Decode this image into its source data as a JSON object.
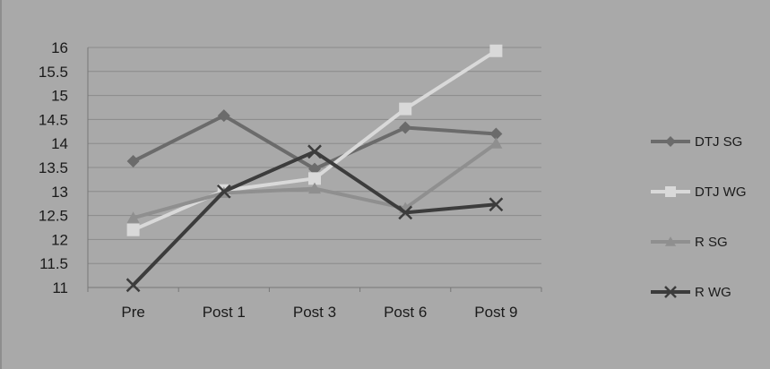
{
  "chart_data": {
    "type": "line",
    "categories": [
      "Pre",
      "Post  1",
      "Post 3",
      "Post 6",
      "Post 9"
    ],
    "ylim": [
      11,
      16
    ],
    "yticks": [
      "11",
      "11.5",
      "12",
      "12.5",
      "13",
      "13.5",
      "14",
      "14.5",
      "15",
      "15.5",
      "16"
    ],
    "grid": true,
    "legend_position": "right",
    "series": [
      {
        "name": "DTJ SG",
        "marker": "diamond",
        "color": "#6b6b6b",
        "values": [
          13.63,
          14.58,
          13.47,
          14.33,
          14.2
        ]
      },
      {
        "name": "DTJ WG",
        "marker": "square",
        "color": "#d9d9d9",
        "values": [
          12.2,
          13.02,
          13.27,
          14.72,
          15.93
        ]
      },
      {
        "name": "R SG",
        "marker": "triangle",
        "color": "#8f8f8f",
        "values": [
          12.45,
          12.97,
          13.06,
          12.65,
          14.0
        ]
      },
      {
        "name": "R WG",
        "marker": "x",
        "color": "#3c3c3c",
        "values": [
          11.05,
          13.0,
          13.83,
          12.56,
          12.73
        ]
      }
    ]
  }
}
